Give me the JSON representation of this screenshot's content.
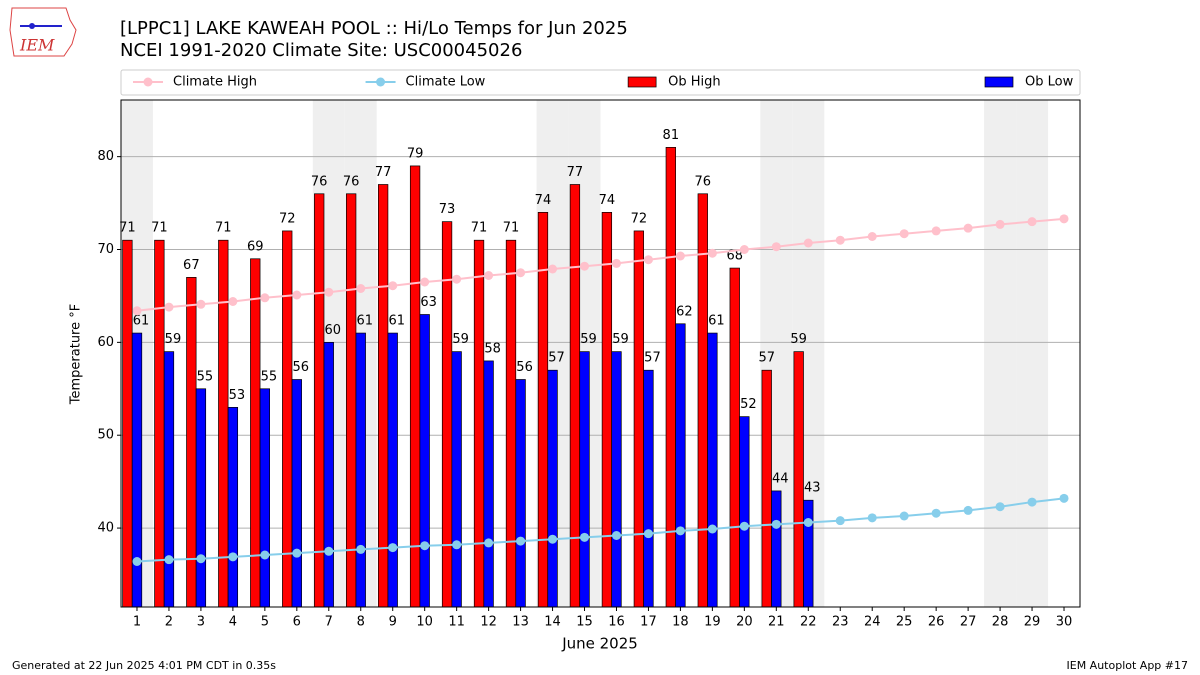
{
  "chart_data": {
    "type": "bar",
    "title": "[LPPC1] LAKE KAWEAH POOL :: Hi/Lo Temps for Jun 2025",
    "subtitle": "NCEI 1991-2020 Climate Site: USC00045026",
    "logo_text": "IEM",
    "ylabel": "Temperature °F",
    "xlabel": "June 2025",
    "footer_left": "Generated at 22 Jun 2025 4:01 PM CDT in 0.35s",
    "footer_right": "IEM Autoplot App #17",
    "legend": "top",
    "grid": true,
    "x": [
      1,
      2,
      3,
      4,
      5,
      6,
      7,
      8,
      9,
      10,
      11,
      12,
      13,
      14,
      15,
      16,
      17,
      18,
      19,
      20,
      21,
      22,
      23,
      24,
      25,
      26,
      27,
      28,
      29,
      30
    ],
    "xlim": [
      0.5,
      30.5
    ],
    "xticks": [
      1,
      2,
      3,
      4,
      5,
      6,
      7,
      8,
      9,
      10,
      11,
      12,
      13,
      14,
      15,
      16,
      17,
      18,
      19,
      20,
      21,
      22,
      23,
      24,
      25,
      26,
      27,
      28,
      29,
      30
    ],
    "ylim": [
      31.5,
      86.1
    ],
    "yticks": [
      40,
      50,
      60,
      70,
      80
    ],
    "shaded": [
      1,
      7,
      8,
      14,
      15,
      21,
      22,
      28,
      29
    ],
    "shade_color": "#efefef",
    "series": [
      {
        "name": "Climate High",
        "kind": "line",
        "color": "pink",
        "values": [
          63.4,
          63.8,
          64.1,
          64.4,
          64.8,
          65.1,
          65.4,
          65.8,
          66.1,
          66.5,
          66.8,
          67.2,
          67.5,
          67.9,
          68.2,
          68.5,
          68.9,
          69.3,
          69.6,
          70.0,
          70.3,
          70.7,
          71.0,
          71.4,
          71.7,
          72.0,
          72.3,
          72.7,
          73.0,
          73.3
        ]
      },
      {
        "name": "Climate Low",
        "kind": "line",
        "color": "skyblue",
        "values": [
          36.4,
          36.6,
          36.7,
          36.9,
          37.1,
          37.3,
          37.5,
          37.7,
          37.9,
          38.1,
          38.2,
          38.4,
          38.6,
          38.8,
          39.0,
          39.2,
          39.4,
          39.7,
          39.9,
          40.2,
          40.4,
          40.6,
          40.8,
          41.1,
          41.3,
          41.6,
          41.9,
          42.3,
          42.8,
          43.2
        ]
      },
      {
        "name": "Ob High",
        "kind": "bar",
        "color": "red",
        "values": [
          71,
          71,
          67,
          71,
          69,
          72,
          76,
          76,
          77,
          79,
          73,
          71,
          71,
          74,
          77,
          74,
          72,
          81,
          76,
          68,
          57,
          59,
          null,
          null,
          null,
          null,
          null,
          null,
          null,
          null
        ]
      },
      {
        "name": "Ob Low",
        "kind": "bar",
        "color": "blue",
        "values": [
          61,
          59,
          55,
          53,
          55,
          56,
          60,
          61,
          61,
          63,
          59,
          58,
          56,
          57,
          59,
          59,
          57,
          62,
          61,
          52,
          44,
          43,
          null,
          null,
          null,
          null,
          null,
          null,
          null,
          null
        ]
      }
    ]
  }
}
